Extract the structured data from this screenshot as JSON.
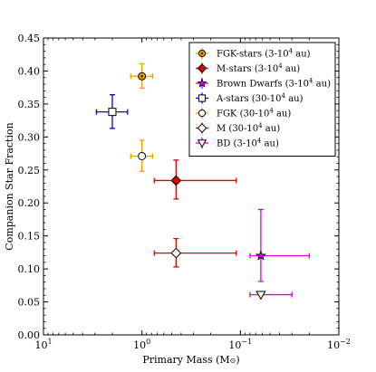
{
  "chart_data": {
    "type": "scatter",
    "xlabel": "Primary Mass (M",
    "xlabel_symbol": "⊙",
    "ylabel": "Companion Star Fraction",
    "x_scale": "log",
    "x_reversed": true,
    "xlim": [
      10,
      0.01
    ],
    "ylim": [
      0.0,
      0.45
    ],
    "y_ticks": [
      "0.00",
      "0.05",
      "0.10",
      "0.15",
      "0.20",
      "0.25",
      "0.30",
      "0.35",
      "0.40",
      "0.45"
    ],
    "x_ticks": [
      {
        "base": "10",
        "exp": "1",
        "value": 10
      },
      {
        "base": "10",
        "exp": "0",
        "value": 1
      },
      {
        "base": "10",
        "exp": "−1",
        "value": 0.1
      },
      {
        "base": "10",
        "exp": "−2",
        "value": 0.01
      }
    ],
    "legend_position": "top-right",
    "series": [
      {
        "name_main": "FGK-stars (3-10",
        "name_sup": "4",
        "name_tail": " au)",
        "marker": "circle",
        "color": "#f0a000",
        "fill": "#f0a000",
        "center_fill": "#333333",
        "x": 1.0,
        "xerr_lo": 0.78,
        "xerr_hi": 1.3,
        "y": 0.392,
        "yerr_lo": 0.374,
        "yerr_hi": 0.411
      },
      {
        "name_main": "M-stars (3-10",
        "name_sup": "4",
        "name_tail": " au)",
        "marker": "diamond",
        "color": "#e00000",
        "fill": "#e00000",
        "x": 0.45,
        "xerr_lo": 0.11,
        "xerr_hi": 0.75,
        "y": 0.234,
        "yerr_lo": 0.206,
        "yerr_hi": 0.265
      },
      {
        "name_main": "Brown Dwarfs (3-10",
        "name_sup": "4",
        "name_tail": " au)",
        "marker": "star",
        "color": "#dd00dd",
        "fill": "#dd00dd",
        "center_fill": "#000000",
        "x": 0.062,
        "xerr_lo": 0.02,
        "xerr_hi": 0.08,
        "y": 0.12,
        "yerr_lo": 0.081,
        "yerr_hi": 0.19
      },
      {
        "name_main": "A-stars (30-10",
        "name_sup": "4",
        "name_tail": " au)",
        "marker": "square",
        "color": "#0000ff",
        "fill": "#ffffff",
        "x": 2.0,
        "xerr_lo": 1.4,
        "xerr_hi": 2.9,
        "y": 0.338,
        "yerr_lo": 0.313,
        "yerr_hi": 0.364
      },
      {
        "name_main": "FGK (30-10",
        "name_sup": "4",
        "name_tail": " au)",
        "marker": "circle",
        "color": "#f0a000",
        "fill": "#ffffff",
        "x": 1.0,
        "xerr_lo": 0.78,
        "xerr_hi": 1.3,
        "y": 0.271,
        "yerr_lo": 0.248,
        "yerr_hi": 0.295
      },
      {
        "name_main": "M (30-10",
        "name_sup": "4",
        "name_tail": " au)",
        "marker": "diamond",
        "color": "#e00000",
        "fill": "#ffffff",
        "x": 0.45,
        "xerr_lo": 0.11,
        "xerr_hi": 0.75,
        "y": 0.124,
        "yerr_lo": 0.103,
        "yerr_hi": 0.146
      },
      {
        "name_main": "BD (3-10",
        "name_sup": "4",
        "name_tail": " au)",
        "marker": "triangle-down",
        "color": "#dd00dd",
        "fill": "#ffffff",
        "x": 0.062,
        "xerr_lo": 0.03,
        "xerr_hi": 0.08,
        "y": 0.061,
        "yerr_lo": null,
        "yerr_hi": null
      }
    ]
  }
}
